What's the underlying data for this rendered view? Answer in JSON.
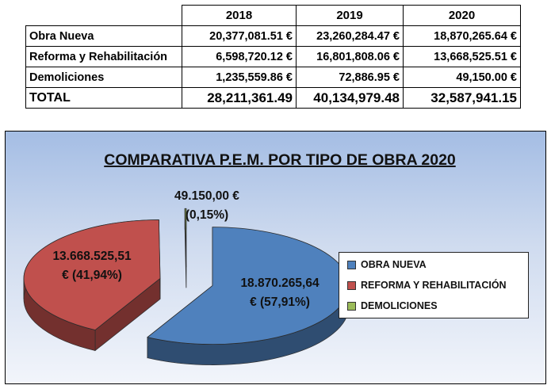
{
  "table": {
    "years": [
      "2018",
      "2019",
      "2020"
    ],
    "rows": [
      {
        "label": "Obra Nueva",
        "values": [
          "20,377,081.51 €",
          "23,260,284.47 €",
          "18,870,265.64 €"
        ]
      },
      {
        "label": "Reforma y Rehabilitación",
        "values": [
          "6,598,720.12 €",
          "16,801,808.06 €",
          "13,668,525.51 €"
        ]
      },
      {
        "label": "Demoliciones",
        "values": [
          "1,235,559.86 €",
          "72,886.95 €",
          "49,150.00 €"
        ]
      }
    ],
    "total": {
      "label": "TOTAL",
      "values": [
        "28,211,361.49",
        "40,134,979.48",
        "32,587,941.15"
      ]
    }
  },
  "chart_data": {
    "type": "pie",
    "title": "COMPARATIVA P.E.M. POR TIPO DE OBRA 2020",
    "legend_position": "right",
    "slices": [
      {
        "name": "OBRA NUEVA",
        "value": 18870265.64,
        "percent": 57.91,
        "label_line1": "18.870.265,64",
        "label_line2": "€ (57,91%)",
        "color": "#4f81bd"
      },
      {
        "name": "REFORMA Y REHABILITACIÓN",
        "value": 13668525.51,
        "percent": 41.94,
        "label_line1": "13.668.525,51",
        "label_line2": "€ (41,94%)",
        "color": "#c0504d"
      },
      {
        "name": "DEMOLICIONES",
        "value": 49150.0,
        "percent": 0.15,
        "label_line1": "49.150,00 €",
        "label_line2": "(0,15%)",
        "color": "#9bbb59"
      }
    ]
  }
}
